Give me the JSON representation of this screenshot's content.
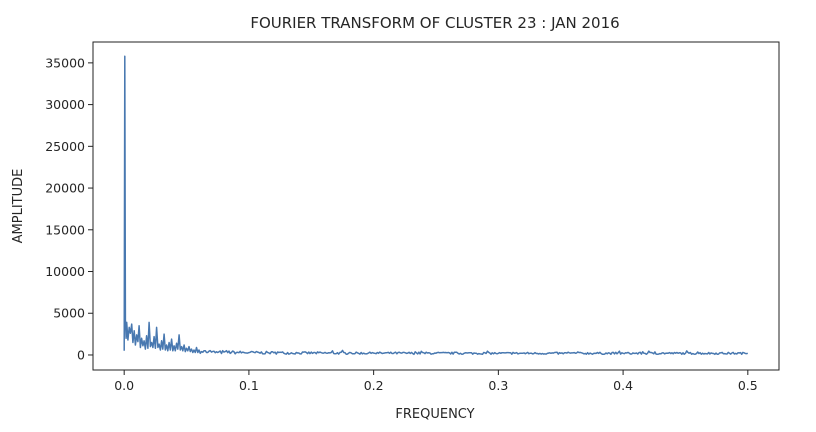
{
  "chart_data": {
    "type": "line",
    "title": "FOURIER TRANSFORM OF CLUSTER 23 : JAN 2016",
    "xlabel": "FREQUENCY",
    "ylabel": "AMPLITUDE",
    "xlim": [
      -0.025,
      0.525
    ],
    "ylim": [
      -1800,
      37500
    ],
    "xticks": [
      "0.0",
      "0.1",
      "0.2",
      "0.3",
      "0.4",
      "0.5"
    ],
    "yticks": [
      "0",
      "5000",
      "10000",
      "15000",
      "20000",
      "25000",
      "30000",
      "35000"
    ],
    "grid": false,
    "line_color": "#4878b0",
    "series": [
      {
        "values_x": [
          0.0,
          0.0005,
          0.001,
          0.0015,
          0.002,
          0.003,
          0.004,
          0.005,
          0.006,
          0.007,
          0.008,
          0.009,
          0.01,
          0.011,
          0.012,
          0.013,
          0.014,
          0.015,
          0.016,
          0.017,
          0.018,
          0.019,
          0.02,
          0.021,
          0.022,
          0.023,
          0.024,
          0.025,
          0.026,
          0.027,
          0.028,
          0.029,
          0.03,
          0.031,
          0.032,
          0.033,
          0.034,
          0.035,
          0.036,
          0.037,
          0.038,
          0.039,
          0.04,
          0.041,
          0.042,
          0.043,
          0.044,
          0.045,
          0.046,
          0.047,
          0.048,
          0.049,
          0.05,
          0.051,
          0.052,
          0.053,
          0.054,
          0.055,
          0.056,
          0.057,
          0.058,
          0.059,
          0.06,
          0.062,
          0.064,
          0.066,
          0.068,
          0.07,
          0.075,
          0.08,
          0.09,
          0.1,
          0.12,
          0.14,
          0.16,
          0.18,
          0.2,
          0.25,
          0.3,
          0.35,
          0.4,
          0.45,
          0.5
        ],
        "values_y": [
          500,
          35800,
          4200,
          2000,
          3900,
          1800,
          3300,
          2600,
          3700,
          1500,
          2900,
          1200,
          2400,
          1600,
          3500,
          900,
          2000,
          1100,
          1700,
          700,
          2300,
          800,
          3900,
          1000,
          1500,
          900,
          2200,
          800,
          3300,
          900,
          1300,
          600,
          1700,
          700,
          2500,
          600,
          1200,
          500,
          1500,
          600,
          1900,
          500,
          1100,
          500,
          1400,
          700,
          2400,
          600,
          1000,
          500,
          1200,
          400,
          800,
          500,
          1000,
          400,
          700,
          300,
          600,
          300,
          900,
          300,
          600,
          400,
          500,
          300,
          450,
          350,
          300,
          350,
          300,
          280,
          260,
          240,
          230,
          220,
          220,
          210,
          200,
          200,
          200,
          200,
          200
        ]
      }
    ]
  }
}
